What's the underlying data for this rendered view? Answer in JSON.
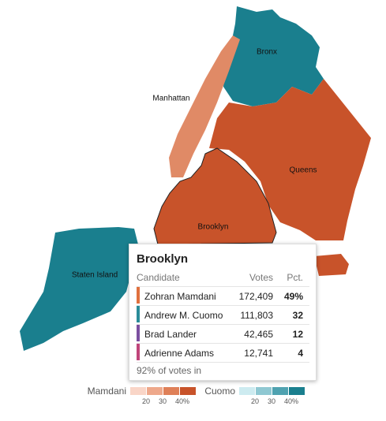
{
  "map": {
    "labels": [
      "Bronx",
      "Manhattan",
      "Queens",
      "Brooklyn",
      "Staten Island"
    ]
  },
  "tooltip": {
    "title": "Brooklyn",
    "columns": [
      "Candidate",
      "Votes",
      "Pct."
    ],
    "rows": [
      {
        "name": "Zohran Mamdani",
        "votes": "172,409",
        "pct": "49%",
        "color": "#e0703e"
      },
      {
        "name": "Andrew M. Cuomo",
        "votes": "111,803",
        "pct": "32",
        "color": "#2a8c99"
      },
      {
        "name": "Brad Lander",
        "votes": "42,465",
        "pct": "12",
        "color": "#7b4fa0"
      },
      {
        "name": "Adrienne Adams",
        "votes": "12,741",
        "pct": "4",
        "color": "#c0457a"
      }
    ],
    "footnote": "92% of votes in"
  },
  "legend": [
    {
      "name": "Mamdani",
      "colors": [
        "#f9d5c7",
        "#eea88b",
        "#df8058",
        "#c8532a"
      ],
      "ticks": [
        "20",
        "30",
        "40%"
      ]
    },
    {
      "name": "Cuomo",
      "colors": [
        "#cdebf0",
        "#8fc8d2",
        "#4fa2b0",
        "#1a7f8e"
      ],
      "ticks": [
        "20",
        "30",
        "40%"
      ]
    }
  ]
}
